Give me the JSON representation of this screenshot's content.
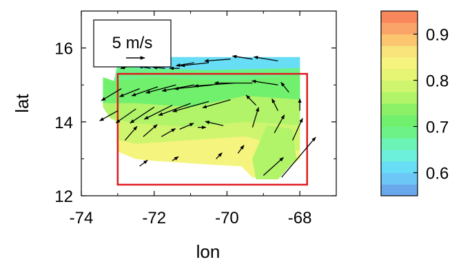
{
  "chart_data": {
    "type": "heatmap",
    "subtype": "filled contour with wind vector arrows",
    "xlabel": "lon",
    "ylabel": "lat",
    "xlim": [
      -74,
      -67
    ],
    "ylim": [
      12,
      17
    ],
    "x_ticks": [
      "-74",
      "-72",
      "-70",
      "-68"
    ],
    "y_ticks": [
      "12",
      "14",
      "16"
    ],
    "reference_vector": {
      "label": "5 m/s",
      "speed": 5
    },
    "highlight_box": {
      "lon": [
        -73,
        -67.8
      ],
      "lat": [
        12.3,
        15.3
      ],
      "color": "#e0191e"
    },
    "colorbar": {
      "ticks": [
        "0.6",
        "0.7",
        "0.8",
        "0.9"
      ],
      "range": [
        0.55,
        0.95
      ],
      "levels": [
        {
          "min": 0.55,
          "max": 0.575,
          "color": "#6aa8ec"
        },
        {
          "min": 0.575,
          "max": 0.6,
          "color": "#6cc7f7"
        },
        {
          "min": 0.6,
          "max": 0.625,
          "color": "#68ddf6"
        },
        {
          "min": 0.625,
          "max": 0.65,
          "color": "#6cf0dc"
        },
        {
          "min": 0.65,
          "max": 0.675,
          "color": "#6cf4b7"
        },
        {
          "min": 0.675,
          "max": 0.7,
          "color": "#6cf287"
        },
        {
          "min": 0.7,
          "max": 0.725,
          "color": "#70f06d"
        },
        {
          "min": 0.725,
          "max": 0.75,
          "color": "#8cf066"
        },
        {
          "min": 0.75,
          "max": 0.775,
          "color": "#b1f46a"
        },
        {
          "min": 0.775,
          "max": 0.8,
          "color": "#cff56f"
        },
        {
          "min": 0.8,
          "max": 0.825,
          "color": "#e6f574"
        },
        {
          "min": 0.825,
          "max": 0.85,
          "color": "#f4f47e"
        },
        {
          "min": 0.85,
          "max": 0.875,
          "color": "#f9e47b"
        },
        {
          "min": 0.875,
          "max": 0.9,
          "color": "#fcc56f"
        },
        {
          "min": 0.9,
          "max": 0.925,
          "color": "#fba46a"
        },
        {
          "min": 0.925,
          "max": 0.95,
          "color": "#f8875c"
        }
      ]
    },
    "field_regions": [
      {
        "value": 0.62,
        "points": [
          [
            -72.3,
            15.75
          ],
          [
            -68,
            15.75
          ],
          [
            -68,
            15.45
          ],
          [
            -70.5,
            15.4
          ],
          [
            -72.5,
            15.45
          ]
        ]
      },
      {
        "value": 0.68,
        "points": [
          [
            -73,
            15.55
          ],
          [
            -72.3,
            15.75
          ],
          [
            -72.5,
            15.45
          ],
          [
            -70.5,
            15.4
          ],
          [
            -68,
            15.45
          ],
          [
            -68,
            15.25
          ],
          [
            -70,
            15.1
          ],
          [
            -72,
            15.2
          ],
          [
            -73.1,
            15.1
          ]
        ]
      },
      {
        "value": 0.72,
        "points": [
          [
            -73.4,
            15.2
          ],
          [
            -73.1,
            15.1
          ],
          [
            -72,
            15.2
          ],
          [
            -70,
            15.1
          ],
          [
            -68,
            15.25
          ],
          [
            -68,
            14.6
          ],
          [
            -69.5,
            14.7
          ],
          [
            -71,
            14.4
          ],
          [
            -72.5,
            14.5
          ],
          [
            -73.4,
            14.5
          ]
        ]
      },
      {
        "value": 0.75,
        "points": [
          [
            -73.4,
            14.5
          ],
          [
            -72.5,
            14.5
          ],
          [
            -71,
            14.4
          ],
          [
            -69.5,
            14.7
          ],
          [
            -68,
            14.6
          ],
          [
            -68,
            13.9
          ],
          [
            -69.5,
            14.0
          ],
          [
            -71,
            13.85
          ],
          [
            -72.5,
            13.95
          ],
          [
            -73.2,
            14.1
          ],
          [
            -73.4,
            14.4
          ]
        ]
      },
      {
        "value": 0.78,
        "points": [
          [
            -73.2,
            14.1
          ],
          [
            -72.5,
            13.95
          ],
          [
            -71,
            13.85
          ],
          [
            -69.5,
            14.0
          ],
          [
            -68,
            13.9
          ],
          [
            -68,
            13.2
          ],
          [
            -69.5,
            13.6
          ],
          [
            -71,
            13.5
          ],
          [
            -72.5,
            13.4
          ],
          [
            -73,
            13.5
          ],
          [
            -73,
            14.0
          ]
        ]
      },
      {
        "value": 0.83,
        "points": [
          [
            -73,
            13.5
          ],
          [
            -72.5,
            13.4
          ],
          [
            -71,
            13.5
          ],
          [
            -69.5,
            13.6
          ],
          [
            -68,
            13.2
          ],
          [
            -68,
            13.0
          ],
          [
            -68.7,
            12.5
          ],
          [
            -69.3,
            12.5
          ],
          [
            -69.6,
            12.8
          ],
          [
            -70.5,
            12.85
          ],
          [
            -72,
            12.95
          ],
          [
            -72.5,
            13.0
          ],
          [
            -73,
            13.2
          ]
        ]
      },
      {
        "value": 0.76,
        "points": [
          [
            -68.9,
            13.9
          ],
          [
            -68.2,
            13.8
          ],
          [
            -68.1,
            13.0
          ],
          [
            -68.6,
            12.45
          ],
          [
            -69.2,
            12.45
          ],
          [
            -69.3,
            13.0
          ]
        ]
      }
    ],
    "vectors": [
      {
        "x": -72.1,
        "y": 15.45,
        "u": -0.6,
        "v": 0.1
      },
      {
        "x": -71.7,
        "y": 15.45,
        "u": -0.6,
        "v": 0.05
      },
      {
        "x": -71.3,
        "y": 15.45,
        "u": -0.5,
        "v": 0.0
      },
      {
        "x": -70.9,
        "y": 15.6,
        "u": -0.9,
        "v": -0.15
      },
      {
        "x": -70.5,
        "y": 15.6,
        "u": -1.4,
        "v": -0.15
      },
      {
        "x": -69.9,
        "y": 15.7,
        "u": -1.3,
        "v": -0.1
      },
      {
        "x": -69.3,
        "y": 15.7,
        "u": -1.0,
        "v": 0.15
      },
      {
        "x": -68.6,
        "y": 15.65,
        "u": -1.2,
        "v": 0.2
      },
      {
        "x": -72.7,
        "y": 15.5,
        "u": -0.4,
        "v": -0.1
      },
      {
        "x": -72.9,
        "y": 14.9,
        "u": -1.0,
        "v": -0.6
      },
      {
        "x": -72.4,
        "y": 14.9,
        "u": -1.0,
        "v": -0.4
      },
      {
        "x": -71.9,
        "y": 14.95,
        "u": -1.3,
        "v": -0.45
      },
      {
        "x": -71.4,
        "y": 15.0,
        "u": -1.5,
        "v": -0.4
      },
      {
        "x": -70.9,
        "y": 15.0,
        "u": -1.6,
        "v": -0.3
      },
      {
        "x": -70.4,
        "y": 15.0,
        "u": -1.9,
        "v": -0.2
      },
      {
        "x": -69.8,
        "y": 15.05,
        "u": -2.0,
        "v": -0.15
      },
      {
        "x": -69.3,
        "y": 15.05,
        "u": -1.9,
        "v": 0.0
      },
      {
        "x": -68.6,
        "y": 15.0,
        "u": -1.3,
        "v": 0.2
      },
      {
        "x": -68.3,
        "y": 14.8,
        "u": -0.4,
        "v": 0.5
      },
      {
        "x": -73.0,
        "y": 14.3,
        "u": -0.9,
        "v": -0.5
      },
      {
        "x": -72.5,
        "y": 14.35,
        "u": -1.0,
        "v": -0.7
      },
      {
        "x": -72.0,
        "y": 14.4,
        "u": -1.2,
        "v": -0.8
      },
      {
        "x": -71.5,
        "y": 14.45,
        "u": -1.4,
        "v": -0.7
      },
      {
        "x": -71.0,
        "y": 14.5,
        "u": -1.6,
        "v": -0.6
      },
      {
        "x": -70.5,
        "y": 14.55,
        "u": -1.8,
        "v": -0.5
      },
      {
        "x": -69.9,
        "y": 14.6,
        "u": -1.4,
        "v": -0.4
      },
      {
        "x": -69.2,
        "y": 14.45,
        "u": -0.5,
        "v": 0.5
      },
      {
        "x": -68.6,
        "y": 14.3,
        "u": -0.3,
        "v": 0.6
      },
      {
        "x": -68.0,
        "y": 14.3,
        "u": 0.0,
        "v": 0.6
      },
      {
        "x": -72.8,
        "y": 13.5,
        "u": 0.6,
        "v": 0.7
      },
      {
        "x": -72.3,
        "y": 13.6,
        "u": 0.7,
        "v": 0.6
      },
      {
        "x": -71.8,
        "y": 13.6,
        "u": 0.7,
        "v": 0.4
      },
      {
        "x": -71.3,
        "y": 13.8,
        "u": 0.7,
        "v": 0.3
      },
      {
        "x": -70.8,
        "y": 13.85,
        "u": 0.4,
        "v": 0.0
      },
      {
        "x": -70.1,
        "y": 13.9,
        "u": -0.9,
        "v": 0.2
      },
      {
        "x": -69.3,
        "y": 13.85,
        "u": 0.3,
        "v": 1.0
      },
      {
        "x": -68.7,
        "y": 13.7,
        "u": 0.5,
        "v": 0.9
      },
      {
        "x": -68.2,
        "y": 13.5,
        "u": 0.5,
        "v": 1.1
      },
      {
        "x": -72.4,
        "y": 12.8,
        "u": 0.4,
        "v": 0.3
      },
      {
        "x": -71.5,
        "y": 12.95,
        "u": 0.3,
        "v": 0.2
      },
      {
        "x": -70.3,
        "y": 13.0,
        "u": 0.3,
        "v": 0.3
      },
      {
        "x": -69.7,
        "y": 13.15,
        "u": 0.3,
        "v": 0.4
      },
      {
        "x": -69.0,
        "y": 12.55,
        "u": 1.0,
        "v": 0.9
      },
      {
        "x": -68.5,
        "y": 12.5,
        "u": 1.7,
        "v": 2.0
      }
    ]
  }
}
